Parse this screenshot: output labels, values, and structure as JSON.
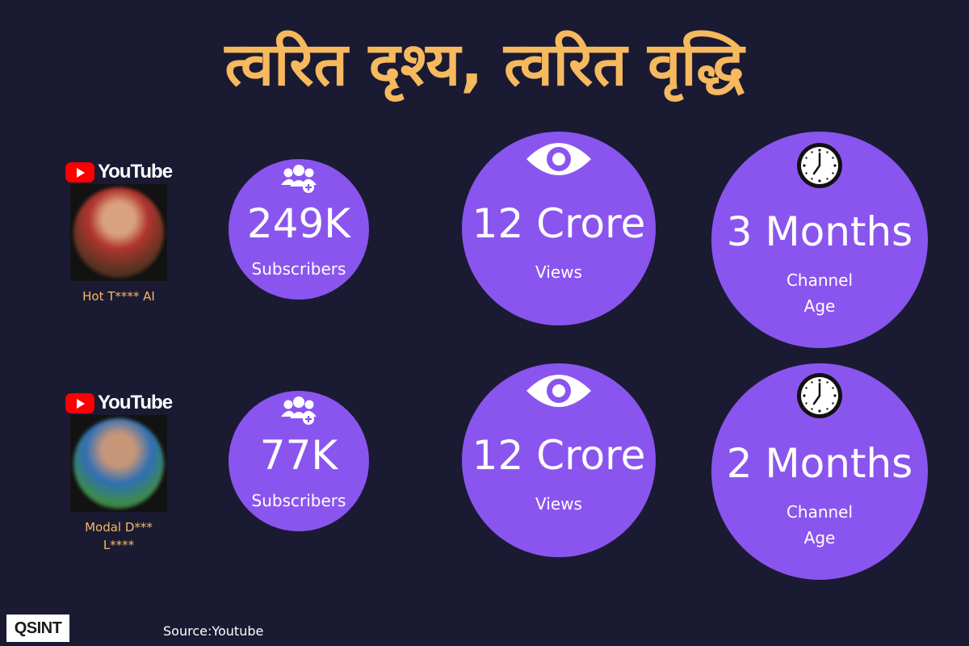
{
  "title": "त्वरित दृश्य, त्वरित वृद्धि",
  "brand": {
    "youtube_word": "YouTube",
    "logo_text": "QSINT"
  },
  "source": "Source:Youtube",
  "channels": [
    {
      "name": "Hot T**** AI",
      "subscribers": "249K",
      "subscribers_label": "Subscribers",
      "views": "12 Crore",
      "views_label": "Views",
      "age": "3 Months",
      "age_label": "Channel Age"
    },
    {
      "name": "Modal D*** L****",
      "subscribers": "77K",
      "subscribers_label": "Subscribers",
      "views": "12 Crore",
      "views_label": "Views",
      "age": "2 Months",
      "age_label": "Channel Age"
    }
  ],
  "colors": {
    "background": "#1b1a33",
    "circle": "#8a55ee",
    "accent": "#f6b95e",
    "youtube_red": "#ff0000"
  },
  "icons": [
    "users-plus-icon",
    "eye-icon",
    "clock-icon",
    "youtube-play-icon"
  ]
}
